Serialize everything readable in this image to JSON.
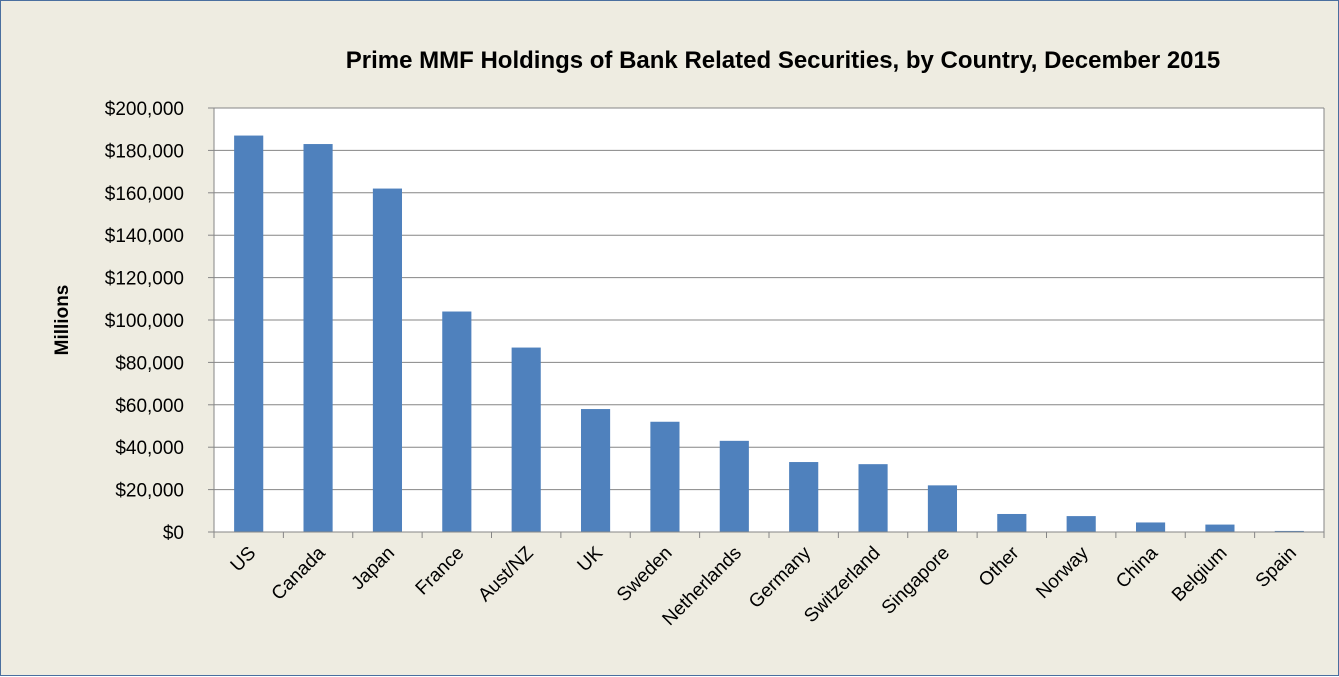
{
  "chart_data": {
    "type": "bar",
    "title": "Prime MMF Holdings of Bank Related Securities, by Country, December 2015",
    "xlabel": "",
    "ylabel": "Millions",
    "categories": [
      "US",
      "Canada",
      "Japan",
      "France",
      "Aust/NZ",
      "UK",
      "Sweden",
      "Netherlands",
      "Germany",
      "Switzerland",
      "Singapore",
      "Other",
      "Norway",
      "China",
      "Belgium",
      "Spain"
    ],
    "values": [
      187000,
      183000,
      162000,
      104000,
      87000,
      58000,
      52000,
      43000,
      33000,
      32000,
      22000,
      8500,
      7500,
      4500,
      3500,
      500
    ],
    "ylim": [
      0,
      200000
    ],
    "yticks": [
      0,
      20000,
      40000,
      60000,
      80000,
      100000,
      120000,
      140000,
      160000,
      180000,
      200000
    ],
    "ytick_labels": [
      "$0",
      "$20,000",
      "$40,000",
      "$60,000",
      "$80,000",
      "$100,000",
      "$120,000",
      "$140,000",
      "$160,000",
      "$180,000",
      "$200,000"
    ],
    "grid": true,
    "legend": "none",
    "bar_color": "#4f81bd",
    "background_color": "#eeece1",
    "plot_background_color": "#ffffff"
  }
}
